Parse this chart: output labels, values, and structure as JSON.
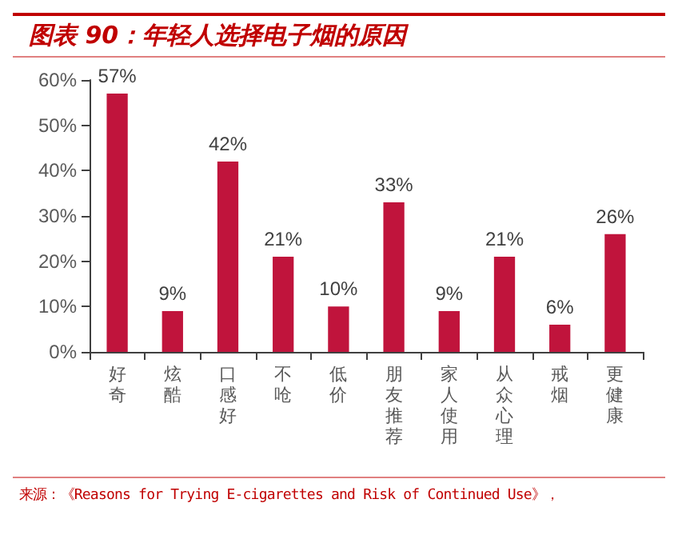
{
  "chart_data": {
    "type": "bar",
    "title": "图表 90：年轻人选择电子烟的原因",
    "categories": [
      "好奇",
      "炫酷",
      "口感好",
      "不呛",
      "低价",
      "朋友推荐",
      "家人使用",
      "从众心理",
      "戒烟",
      "更健康"
    ],
    "values": [
      57,
      9,
      42,
      21,
      10,
      33,
      9,
      21,
      6,
      26
    ],
    "value_labels": [
      "57%",
      "9%",
      "42%",
      "21%",
      "10%",
      "33%",
      "9%",
      "21%",
      "6%",
      "26%"
    ],
    "color": "#c0143c",
    "ylim": [
      0,
      60
    ],
    "yticks": [
      {
        "value": 0,
        "label": "0%"
      },
      {
        "value": 10,
        "label": "10%"
      },
      {
        "value": 20,
        "label": "20%"
      },
      {
        "value": 30,
        "label": "30%"
      },
      {
        "value": 40,
        "label": "40%"
      },
      {
        "value": 50,
        "label": "50%"
      },
      {
        "value": 60,
        "label": "60%"
      }
    ],
    "grid": false,
    "annotations": [
      "来源：《Reasons for Trying E-cigarettes and Risk of Continued Use》，"
    ]
  }
}
